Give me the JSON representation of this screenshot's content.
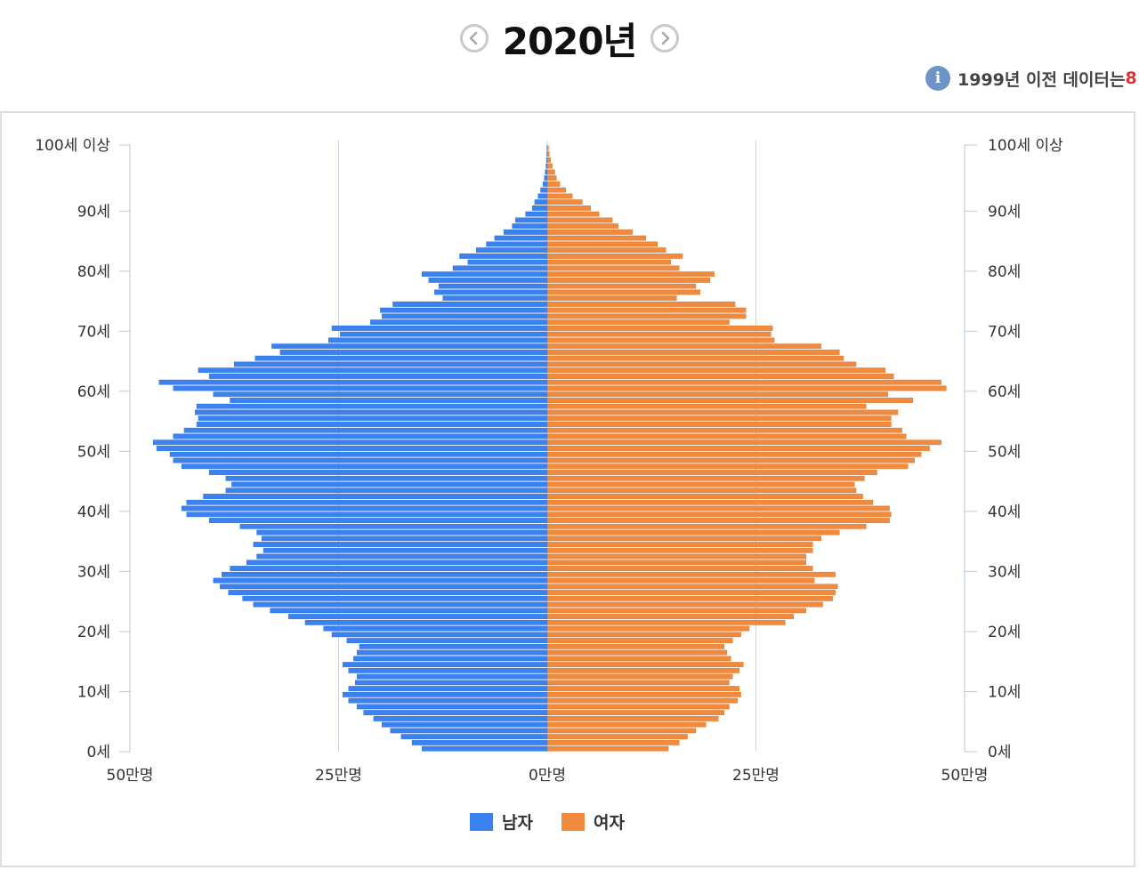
{
  "header": {
    "year_title": "2020년",
    "notice_text": "1999년 이전 데이터는 ",
    "notice_accent": "8"
  },
  "colors": {
    "male": "#3b82f0",
    "female": "#f08a3e",
    "grid": "#c9d3de",
    "axis": "#b9c9d9"
  },
  "chart_data": {
    "type": "bar",
    "orientation": "horizontal-population-pyramid",
    "title": "2020년",
    "y_tick_labels": [
      "0세",
      "10세",
      "20세",
      "30세",
      "40세",
      "50세",
      "60세",
      "70세",
      "80세",
      "90세",
      "100세 이상"
    ],
    "y_tick_values": [
      0,
      10,
      20,
      30,
      40,
      50,
      60,
      70,
      80,
      90,
      100
    ],
    "x_tick_labels": [
      "50만명",
      "25만명",
      "0만명",
      "25만명",
      "50만명"
    ],
    "xlim": [
      -500000,
      500000
    ],
    "grid": true,
    "legend_position": "bottom",
    "categories": [
      0,
      1,
      2,
      3,
      4,
      5,
      6,
      7,
      8,
      9,
      10,
      11,
      12,
      13,
      14,
      15,
      16,
      17,
      18,
      19,
      20,
      21,
      22,
      23,
      24,
      25,
      26,
      27,
      28,
      29,
      30,
      31,
      32,
      33,
      34,
      35,
      36,
      37,
      38,
      39,
      40,
      41,
      42,
      43,
      44,
      45,
      46,
      47,
      48,
      49,
      50,
      51,
      52,
      53,
      54,
      55,
      56,
      57,
      58,
      59,
      60,
      61,
      62,
      63,
      64,
      65,
      66,
      67,
      68,
      69,
      70,
      71,
      72,
      73,
      74,
      75,
      76,
      77,
      78,
      79,
      80,
      81,
      82,
      83,
      84,
      85,
      86,
      87,
      88,
      89,
      90,
      91,
      92,
      93,
      94,
      95,
      96,
      97,
      98,
      99,
      100
    ],
    "series": [
      {
        "name": "남자",
        "values": [
          150000,
          162000,
          175000,
          188000,
          198000,
          208000,
          220000,
          228000,
          238000,
          245000,
          238000,
          230000,
          228000,
          238000,
          245000,
          232000,
          228000,
          225000,
          240000,
          258000,
          268000,
          290000,
          310000,
          332000,
          352000,
          365000,
          382000,
          392000,
          400000,
          390000,
          380000,
          360000,
          348000,
          340000,
          352000,
          342000,
          348000,
          368000,
          405000,
          432000,
          438000,
          432000,
          412000,
          385000,
          378000,
          385000,
          405000,
          438000,
          448000,
          452000,
          468000,
          472000,
          448000,
          435000,
          420000,
          418000,
          422000,
          420000,
          380000,
          400000,
          448000,
          465000,
          405000,
          418000,
          375000,
          350000,
          320000,
          330000,
          262000,
          248000,
          258000,
          212000,
          198000,
          200000,
          185000,
          125000,
          135000,
          130000,
          142000,
          150000,
          113000,
          95000,
          105000,
          85000,
          73000,
          63000,
          52000,
          42000,
          38000,
          26000,
          18000,
          15000,
          11000,
          8000,
          5000,
          3500,
          2500,
          1500,
          1000,
          600,
          400
        ]
      },
      {
        "name": "여자",
        "values": [
          145000,
          158000,
          168000,
          178000,
          190000,
          205000,
          212000,
          218000,
          228000,
          232000,
          230000,
          218000,
          222000,
          230000,
          235000,
          220000,
          215000,
          212000,
          222000,
          232000,
          242000,
          285000,
          295000,
          310000,
          330000,
          342000,
          345000,
          348000,
          320000,
          345000,
          318000,
          310000,
          310000,
          318000,
          318000,
          328000,
          350000,
          382000,
          410000,
          412000,
          410000,
          390000,
          378000,
          370000,
          368000,
          380000,
          395000,
          432000,
          440000,
          448000,
          458000,
          472000,
          430000,
          425000,
          412000,
          412000,
          420000,
          382000,
          438000,
          408000,
          478000,
          472000,
          415000,
          405000,
          370000,
          355000,
          350000,
          328000,
          272000,
          268000,
          270000,
          218000,
          238000,
          238000,
          225000,
          155000,
          183000,
          178000,
          195000,
          200000,
          158000,
          148000,
          162000,
          142000,
          132000,
          118000,
          102000,
          85000,
          78000,
          62000,
          52000,
          42000,
          30000,
          22000,
          15000,
          11000,
          9000,
          6000,
          4000,
          2500,
          1500
        ]
      }
    ]
  },
  "legend": {
    "male_label": "남자",
    "female_label": "여자"
  }
}
